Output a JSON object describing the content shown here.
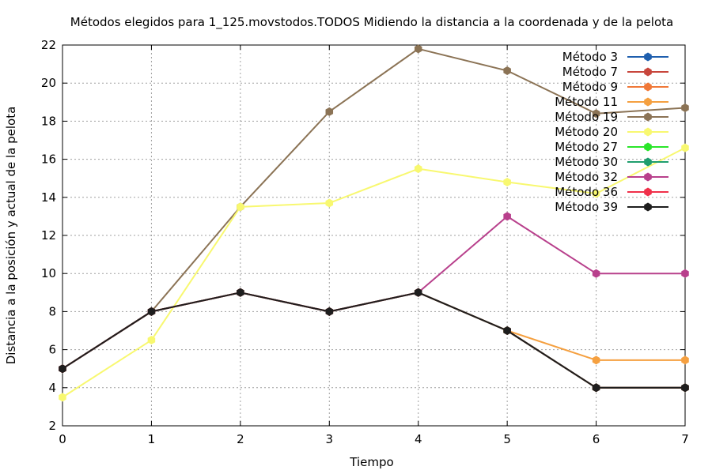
{
  "chart_data": {
    "type": "line",
    "title": "Métodos elegidos para 1_125.movstodos.TODOS Midiendo la distancia a la coordenada y de la pelota",
    "xlabel": "Tiempo",
    "ylabel": "Distancia a la posición y actual de la pelota",
    "xlim": [
      0,
      7
    ],
    "ylim": [
      2,
      22
    ],
    "x_ticks": [
      0,
      1,
      2,
      3,
      4,
      5,
      6,
      7
    ],
    "y_ticks": [
      2,
      4,
      6,
      8,
      10,
      12,
      14,
      16,
      18,
      20,
      22
    ],
    "grid": true,
    "legend_position": "top-right",
    "x": [
      0,
      1,
      2,
      3,
      4,
      5,
      6,
      7
    ],
    "series": [
      {
        "name": "Método 3",
        "color": "#1f5fae",
        "values": [
          5,
          8,
          9,
          8,
          9,
          7,
          4,
          4
        ]
      },
      {
        "name": "Método 7",
        "color": "#c8463c",
        "values": [
          5,
          8,
          9,
          8,
          9,
          7,
          4,
          4
        ]
      },
      {
        "name": "Método 9",
        "color": "#f07838",
        "values": [
          5,
          8,
          9,
          8,
          9,
          7,
          4,
          4
        ]
      },
      {
        "name": "Método 11",
        "color": "#f5a040",
        "values": [
          5,
          8,
          9,
          8,
          9,
          7,
          5.45,
          5.45
        ]
      },
      {
        "name": "Método 19",
        "color": "#8b7355",
        "values": [
          5,
          8,
          13.5,
          18.5,
          21.8,
          20.65,
          18.4,
          18.7
        ]
      },
      {
        "name": "Método 20",
        "color": "#f8f870",
        "values": [
          3.5,
          6.5,
          13.5,
          13.7,
          15.5,
          14.8,
          14.2,
          16.6
        ]
      },
      {
        "name": "Método 27",
        "color": "#2ae62a",
        "values": [
          5,
          8,
          9,
          8,
          9,
          7,
          4,
          4
        ]
      },
      {
        "name": "Método 30",
        "color": "#1f9e6e",
        "values": [
          5,
          8,
          9,
          8,
          9,
          7,
          4,
          4
        ]
      },
      {
        "name": "Método 32",
        "color": "#b8408c",
        "values": [
          5,
          8,
          9,
          8,
          9,
          13,
          10,
          10
        ]
      },
      {
        "name": "Método 36",
        "color": "#f0304a",
        "values": [
          5,
          8,
          9,
          8,
          9,
          7,
          4,
          4
        ]
      },
      {
        "name": "Método 39",
        "color": "#1e1e1e",
        "values": [
          5,
          8,
          9,
          8,
          9,
          7,
          4,
          4
        ]
      }
    ]
  }
}
